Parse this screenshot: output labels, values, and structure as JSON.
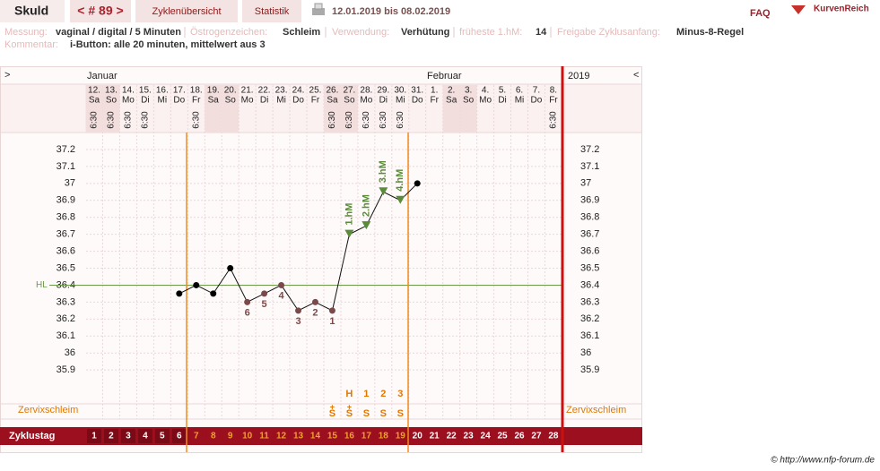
{
  "header": {
    "name": "Skuld",
    "cycle": "< # 89 >",
    "tabs": [
      "Zyklenübersicht",
      "Statistik"
    ],
    "date_range": "12.01.2019 bis 08.02.2019",
    "faq": "FAQ",
    "logo": "KurvenReich"
  },
  "info": {
    "fields": [
      {
        "label": "Messung:",
        "value": "vaginal / digital / 5 Minuten"
      },
      {
        "label": "Östrogenzeichen:",
        "value": "Schleim"
      },
      {
        "label": "Verwendung:",
        "value": "Verhütung"
      },
      {
        "label": "früheste 1.hM:",
        "value": "14"
      },
      {
        "label": "Freigabe Zyklusanfang:",
        "value": "Minus-8-Regel"
      }
    ],
    "comment": {
      "label": "Kommentar:",
      "value": "i-Button: alle 20 minuten, mittelwert aus 3"
    }
  },
  "chart": {
    "nav_prev": ">",
    "nav_next": "<",
    "months": [
      "Januar",
      "Februar"
    ],
    "year": "2019",
    "dates": [
      "12.",
      "13.",
      "14.",
      "15.",
      "16.",
      "17.",
      "18.",
      "19.",
      "20.",
      "21.",
      "22.",
      "23.",
      "24.",
      "25.",
      "26.",
      "27.",
      "28.",
      "29.",
      "30.",
      "31.",
      "1.",
      "2.",
      "3.",
      "4.",
      "5.",
      "6.",
      "7.",
      "8."
    ],
    "weekdays": [
      "Sa",
      "So",
      "Mo",
      "Di",
      "Mi",
      "Do",
      "Fr",
      "Sa",
      "So",
      "Mo",
      "Di",
      "Mi",
      "Do",
      "Fr",
      "Sa",
      "So",
      "Mo",
      "Di",
      "Mi",
      "Do",
      "Fr",
      "Sa",
      "So",
      "Mo",
      "Di",
      "Mi",
      "Do",
      "Fr"
    ],
    "times": [
      "6:30",
      "6:30",
      "6:30",
      "6:30",
      null,
      null,
      "6:30",
      null,
      null,
      null,
      null,
      null,
      null,
      null,
      "6:30",
      "6:30",
      "6:30",
      "6:30",
      "6:30",
      null,
      null,
      null,
      null,
      null,
      null,
      null,
      null,
      "6:30"
    ],
    "temperatures": [
      null,
      null,
      null,
      null,
      null,
      36.35,
      36.4,
      36.35,
      36.5,
      36.3,
      36.35,
      36.4,
      36.25,
      36.3,
      36.25,
      36.7,
      36.75,
      36.95,
      36.9,
      37.0,
      null,
      null,
      null,
      null,
      null,
      null,
      null,
      null
    ],
    "ylim": [
      35.7,
      37.3
    ],
    "yticks": [
      37.2,
      37.1,
      37,
      36.9,
      36.8,
      36.7,
      36.6,
      36.5,
      36.4,
      36.3,
      36.2,
      36.1,
      36,
      35.9
    ],
    "hl_label": "HL",
    "hl_value": 36.4,
    "low_labels": [
      null,
      null,
      null,
      null,
      null,
      null,
      null,
      null,
      null,
      "6",
      "5",
      "4",
      "3",
      "2",
      "1",
      null,
      null,
      null,
      null,
      null,
      null,
      null,
      null,
      null,
      null,
      null,
      null,
      null
    ],
    "high_labels": [
      null,
      null,
      null,
      null,
      null,
      null,
      null,
      null,
      null,
      null,
      null,
      null,
      null,
      null,
      null,
      "1.hM",
      "2.hM",
      "3.hM",
      "4.hM",
      null,
      null,
      null,
      null,
      null,
      null,
      null,
      null,
      null
    ],
    "mucus_label": "Zervixschleim",
    "peak_labels": [
      null,
      null,
      null,
      null,
      null,
      null,
      null,
      null,
      null,
      null,
      null,
      null,
      null,
      null,
      null,
      "H",
      "1",
      "2",
      "3",
      null,
      null,
      null,
      null,
      null,
      null,
      null,
      null,
      null
    ],
    "mucus_plus": [
      null,
      null,
      null,
      null,
      null,
      null,
      null,
      null,
      null,
      null,
      null,
      null,
      null,
      null,
      "+",
      "+",
      null,
      null,
      null,
      null,
      null,
      null,
      null,
      null,
      null,
      null,
      null,
      null
    ],
    "mucus": [
      null,
      null,
      null,
      null,
      null,
      null,
      null,
      null,
      null,
      null,
      null,
      null,
      null,
      null,
      "S",
      "S",
      "S",
      "S",
      "S",
      null,
      null,
      null,
      null,
      null,
      null,
      null,
      null,
      null
    ],
    "cycle_day_label": "Zyklustag",
    "cycle_days": [
      1,
      2,
      3,
      4,
      5,
      6,
      7,
      8,
      9,
      10,
      11,
      12,
      13,
      14,
      15,
      16,
      17,
      18,
      19,
      20,
      21,
      22,
      23,
      24,
      25,
      26,
      27,
      28
    ]
  },
  "footer": "© http://www.nfp-forum.de"
}
